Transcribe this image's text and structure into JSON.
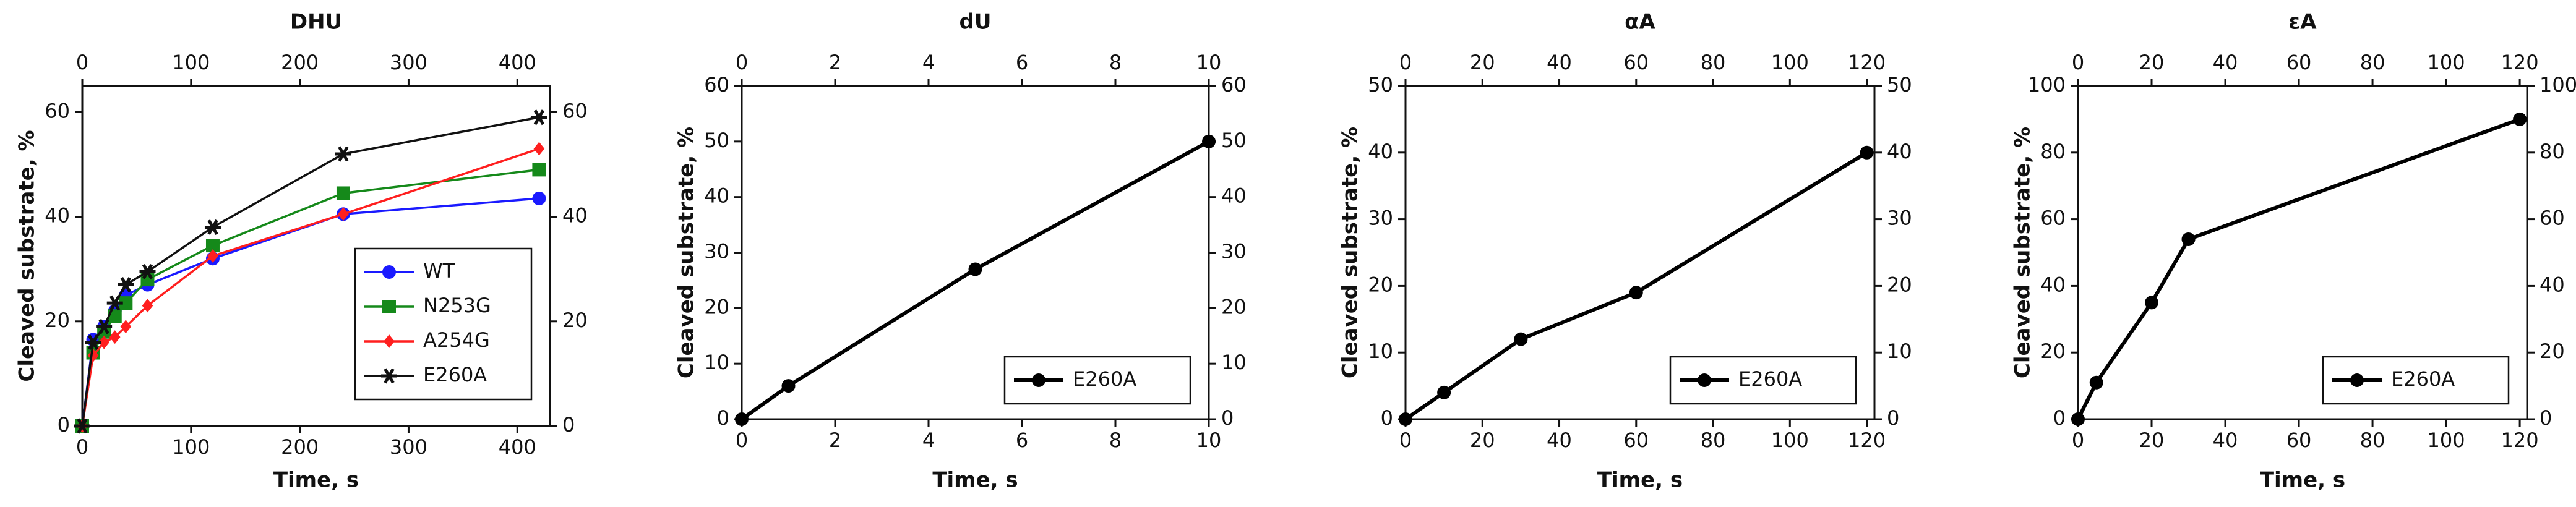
{
  "chart_data": [
    {
      "type": "line",
      "title": "DHU",
      "xlabel": "Time, s",
      "ylabel": "Cleaved substrate, %",
      "x": [
        0,
        10,
        20,
        30,
        40,
        60,
        120,
        240,
        420
      ],
      "series": [
        {
          "name": "WT",
          "color": "#1a1aff",
          "marker": "circle",
          "values": [
            0,
            16.5,
            19,
            22,
            25,
            27,
            32,
            40.5,
            43.5
          ]
        },
        {
          "name": "N253G",
          "color": "#15891a",
          "marker": "square",
          "values": [
            0,
            14,
            18,
            21,
            23.5,
            28,
            34.5,
            44.5,
            49
          ]
        },
        {
          "name": "A254G",
          "color": "#ff1f1f",
          "marker": "diamond",
          "values": [
            0,
            13.5,
            16,
            17,
            19,
            23,
            32.5,
            40.5,
            53
          ]
        },
        {
          "name": "E260A",
          "color": "#111111",
          "marker": "star",
          "values": [
            0,
            16,
            19,
            23.5,
            27,
            29.5,
            38,
            52,
            59
          ]
        }
      ],
      "xlim": [
        0,
        430
      ],
      "xticks": [
        0,
        100,
        200,
        300,
        400
      ],
      "ylim": [
        0,
        65
      ],
      "yticks": [
        0,
        20,
        40,
        60
      ],
      "y2lim": [
        0,
        65
      ],
      "y2ticks": [
        0,
        20,
        40,
        60
      ],
      "legend": "center right"
    },
    {
      "type": "line",
      "title": "dU",
      "xlabel": "Time, s",
      "ylabel": "Cleaved substrate, %",
      "x": [
        0,
        1,
        5,
        10
      ],
      "series": [
        {
          "name": "E260A",
          "color": "#000000",
          "marker": "circle",
          "values": [
            0,
            6,
            27,
            50
          ]
        }
      ],
      "xlim": [
        0,
        10
      ],
      "xticks": [
        0,
        2,
        4,
        6,
        8,
        10
      ],
      "ylim": [
        0,
        60
      ],
      "yticks": [
        0,
        10,
        20,
        30,
        40,
        50,
        60
      ],
      "y2lim": [
        0,
        60
      ],
      "y2ticks": [
        0,
        10,
        20,
        30,
        40,
        50,
        60
      ],
      "legend": "lower right"
    },
    {
      "type": "line",
      "title": "αA",
      "xlabel": "Time, s",
      "ylabel": "Cleaved substrate, %",
      "x": [
        0,
        10,
        30,
        60,
        120
      ],
      "series": [
        {
          "name": "E260A",
          "color": "#000000",
          "marker": "circle",
          "values": [
            0,
            4,
            12,
            19,
            40
          ]
        }
      ],
      "xlim": [
        0,
        122
      ],
      "xticks": [
        0,
        20,
        40,
        60,
        80,
        100,
        120
      ],
      "ylim": [
        0,
        50
      ],
      "yticks": [
        0,
        10,
        20,
        30,
        40,
        50
      ],
      "y2lim": [
        0,
        50
      ],
      "y2ticks": [
        0,
        10,
        20,
        30,
        40,
        50
      ],
      "legend": "lower right"
    },
    {
      "type": "line",
      "title": "εA",
      "xlabel": "Time, s",
      "ylabel": "Cleaved substrate, %",
      "x": [
        0,
        5,
        20,
        30,
        120
      ],
      "series": [
        {
          "name": "E260A",
          "color": "#000000",
          "marker": "circle",
          "values": [
            0,
            11,
            35,
            54,
            90
          ]
        }
      ],
      "xlim": [
        0,
        122
      ],
      "xticks": [
        0,
        20,
        40,
        60,
        80,
        100,
        120
      ],
      "ylim": [
        0,
        100
      ],
      "yticks": [
        0,
        20,
        40,
        60,
        80,
        100
      ],
      "y2lim": [
        0,
        100
      ],
      "y2ticks": [
        0,
        20,
        40,
        60,
        80,
        100
      ],
      "legend": "lower right"
    }
  ]
}
